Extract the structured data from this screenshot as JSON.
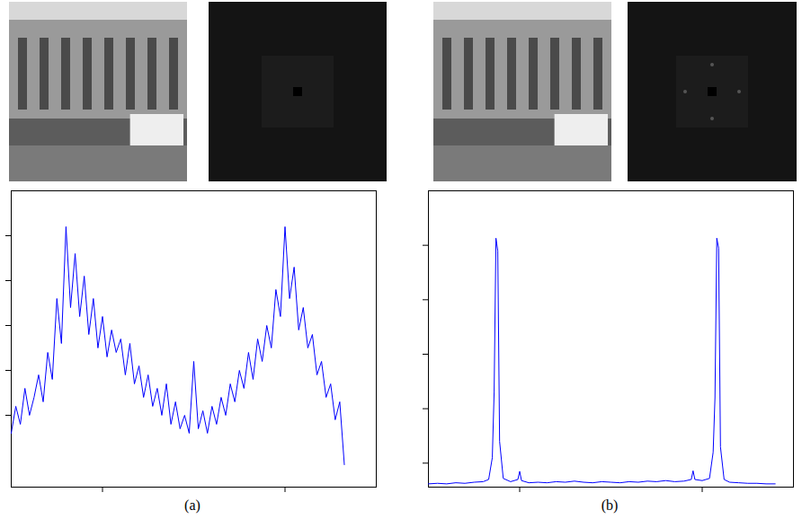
{
  "chart_data": [
    {
      "type": "line",
      "caption": "(a)",
      "tick_labels": false,
      "xlim": [
        0,
        400
      ],
      "xticks": [
        100,
        300
      ],
      "ylim": [
        0.4,
        7
      ],
      "yticks": [
        2,
        3,
        4,
        5,
        6
      ],
      "x": [
        0,
        5,
        10,
        15,
        20,
        25,
        30,
        35,
        40,
        45,
        50,
        55,
        60,
        65,
        70,
        75,
        80,
        85,
        90,
        95,
        100,
        105,
        110,
        115,
        120,
        125,
        130,
        135,
        140,
        145,
        150,
        155,
        160,
        165,
        170,
        175,
        180,
        185,
        190,
        195,
        200,
        205,
        210,
        215,
        220,
        225,
        230,
        235,
        240,
        245,
        250,
        255,
        260,
        265,
        270,
        275,
        280,
        285,
        290,
        295,
        300,
        305,
        310,
        315,
        320,
        325,
        330,
        335,
        340,
        345,
        350,
        355,
        360,
        365
      ],
      "series": [
        {
          "color": "#0000ff",
          "values": [
            1.6,
            2.2,
            1.8,
            2.6,
            2.0,
            2.4,
            2.9,
            2.3,
            3.4,
            2.8,
            4.6,
            3.6,
            6.2,
            4.4,
            5.6,
            4.2,
            5.1,
            3.8,
            4.6,
            3.5,
            4.2,
            3.3,
            3.9,
            3.4,
            3.7,
            2.9,
            3.6,
            2.7,
            3.1,
            2.4,
            2.9,
            2.2,
            2.6,
            2.0,
            2.7,
            1.8,
            2.3,
            1.7,
            2.0,
            1.6,
            3.2,
            1.7,
            2.1,
            1.6,
            2.2,
            1.8,
            2.4,
            2.0,
            2.7,
            2.3,
            3.0,
            2.6,
            3.4,
            2.8,
            3.7,
            3.2,
            4.0,
            3.5,
            4.8,
            4.2,
            6.2,
            4.6,
            5.3,
            3.9,
            4.4,
            3.5,
            3.8,
            2.9,
            3.2,
            2.4,
            2.7,
            1.9,
            2.3,
            0.9
          ]
        }
      ]
    },
    {
      "type": "line",
      "caption": "(b)",
      "tick_labels": false,
      "xlim": [
        0,
        400
      ],
      "xticks": [
        100,
        300
      ],
      "ylim": [
        0.56,
        6
      ],
      "yticks": [
        1,
        2,
        3,
        4,
        5
      ],
      "x": [
        0,
        10,
        20,
        30,
        40,
        50,
        60,
        66,
        70,
        72,
        74,
        76,
        78,
        82,
        90,
        98,
        100,
        102,
        110,
        120,
        130,
        140,
        150,
        160,
        170,
        180,
        190,
        200,
        210,
        220,
        230,
        240,
        250,
        260,
        270,
        280,
        288,
        290,
        292,
        300,
        308,
        312,
        314,
        316,
        318,
        320,
        324,
        330,
        340,
        350,
        360,
        370,
        380
      ],
      "series": [
        {
          "color": "#0000ff",
          "values": [
            0.62,
            0.63,
            0.62,
            0.64,
            0.63,
            0.65,
            0.66,
            0.7,
            1.1,
            2.3,
            5.13,
            4.9,
            1.4,
            0.72,
            0.66,
            0.7,
            0.85,
            0.68,
            0.64,
            0.65,
            0.64,
            0.66,
            0.65,
            0.67,
            0.65,
            0.64,
            0.66,
            0.65,
            0.64,
            0.66,
            0.65,
            0.67,
            0.66,
            0.68,
            0.66,
            0.67,
            0.7,
            0.86,
            0.7,
            0.68,
            0.72,
            1.2,
            2.2,
            5.13,
            4.95,
            1.3,
            0.7,
            0.65,
            0.64,
            0.63,
            0.63,
            0.62,
            0.62
          ]
        }
      ]
    }
  ]
}
